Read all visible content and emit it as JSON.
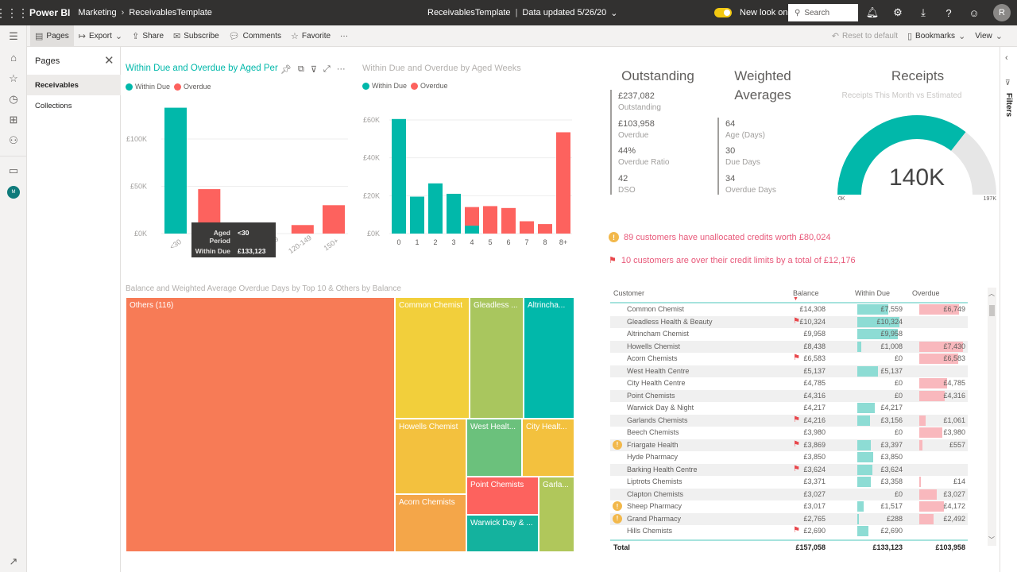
{
  "topbar": {
    "app_name": "Power BI",
    "breadcrumb": [
      "Marketing",
      "ReceivablesTemplate"
    ],
    "report_title": "ReceivablesTemplate",
    "data_updated": "Data updated 5/26/20",
    "new_look_label": "New look on",
    "new_look_on": true,
    "search_placeholder": "Search",
    "avatar_initial": "R"
  },
  "commandbar": {
    "pages": "Pages",
    "export": "Export",
    "share": "Share",
    "subscribe": "Subscribe",
    "comments": "Comments",
    "favorite": "Favorite",
    "more": "···",
    "reset": "Reset to default",
    "bookmarks": "Bookmarks",
    "view": "View"
  },
  "rail": {
    "avatar_initial": "M"
  },
  "pages_pane": {
    "title": "Pages",
    "items": [
      {
        "label": "Receivables",
        "active": true
      },
      {
        "label": "Collections",
        "active": false
      }
    ]
  },
  "filters_pane": {
    "label": "Filters"
  },
  "legend": {
    "within_due": "Within Due",
    "overdue": "Overdue"
  },
  "colors": {
    "within_due": "#01b8aa",
    "overdue": "#fd625e",
    "accent": "#01b8aa",
    "alert_text": "#e8597a"
  },
  "tooltip": {
    "k1": "Aged Period",
    "v1": "<30",
    "k2": "Within Due",
    "v2": "£133,123"
  },
  "chart_data": [
    {
      "type": "bar",
      "title": "Within Due and Overdue by Aged Per",
      "categories": [
        "<30",
        "30-59",
        "60-89",
        "90-119",
        "120-149",
        "150+"
      ],
      "series": [
        {
          "name": "Within Due",
          "values": [
            133123,
            0,
            0,
            0,
            0,
            0
          ]
        },
        {
          "name": "Overdue",
          "values": [
            0,
            47000,
            8000,
            0,
            9000,
            30000
          ]
        }
      ],
      "yticks": [
        "£0K",
        "£50K",
        "£100K"
      ],
      "ylim": [
        0,
        140000
      ],
      "grid": true,
      "legend": "top-left"
    },
    {
      "type": "bar",
      "stacked": true,
      "title": "Within Due and Overdue by Aged Weeks",
      "categories": [
        "0",
        "1",
        "2",
        "3",
        "4",
        "5",
        "6",
        "7",
        "8",
        "8+"
      ],
      "series": [
        {
          "name": "Within Due",
          "values": [
            60500,
            19500,
            26500,
            21000,
            4200,
            0,
            0,
            0,
            0,
            0
          ]
        },
        {
          "name": "Overdue",
          "values": [
            0,
            0,
            0,
            0,
            9800,
            14500,
            13500,
            6500,
            5000,
            53500
          ]
        }
      ],
      "yticks": [
        "£0K",
        "£20K",
        "£40K",
        "£60K"
      ],
      "ylim": [
        0,
        62000
      ],
      "grid": true,
      "legend": "top-left"
    },
    {
      "type": "treemap",
      "title": "Balance and Weighted Average Overdue Days by Top 10 & Others by Balance",
      "items": [
        {
          "label": "Others (116)",
          "value": 157058,
          "color": "#f77b56"
        },
        {
          "label": "Common Chemist",
          "value": 14308,
          "color": "#f2cf3b"
        },
        {
          "label": "Gleadless ...",
          "value": 10324,
          "color": "#a9c65e"
        },
        {
          "label": "Altrincha...",
          "value": 9958,
          "color": "#01b8aa"
        },
        {
          "label": "Howells Chemist",
          "value": 8438,
          "color": "#f3c13e"
        },
        {
          "label": "West Healt...",
          "value": 5137,
          "color": "#6bc17c"
        },
        {
          "label": "City Healt...",
          "value": 4785,
          "color": "#f3c13e"
        },
        {
          "label": "Acorn Chemists",
          "value": 6583,
          "color": "#f4a649"
        },
        {
          "label": "Point Chemists",
          "value": 4316,
          "color": "#fd625e"
        },
        {
          "label": "Warwick Day & ...",
          "value": 4217,
          "color": "#14b29e"
        },
        {
          "label": "Garla...",
          "value": 4216,
          "color": "#b0c75b"
        }
      ]
    },
    {
      "type": "gauge",
      "title": "Receipts",
      "subtitle": "Receipts This Month vs Estimated",
      "value": 140000,
      "value_label": "140K",
      "min": 0,
      "max": 197000,
      "min_label": "0K",
      "max_label": "197K"
    }
  ],
  "kpis": {
    "outstanding": {
      "title": "Outstanding",
      "items": [
        {
          "value": "£237,082",
          "label": "Outstanding"
        },
        {
          "value": "£103,958",
          "label": "Overdue"
        },
        {
          "value": "44%",
          "label": "Overdue Ratio"
        },
        {
          "value": "42",
          "label": "DSO"
        }
      ]
    },
    "weighted": {
      "title_line1": "Weighted",
      "title_line2": "Averages",
      "items": [
        {
          "value": "64",
          "label": "Age (Days)"
        },
        {
          "value": "30",
          "label": "Due Days"
        },
        {
          "value": "34",
          "label": "Overdue Days"
        }
      ]
    }
  },
  "alerts": [
    {
      "icon": "warning",
      "text": "89 customers have unallocated credits worth £80,024"
    },
    {
      "icon": "flag",
      "text": "10 customers are over their credit limits by a total of £12,176"
    }
  ],
  "table": {
    "columns": [
      "Customer",
      "Balance",
      "Within Due",
      "Overdue"
    ],
    "max_within": 10324,
    "max_overdue": 7430,
    "rows": [
      {
        "customer": "Common Chemist",
        "warn": false,
        "flag": false,
        "balance": "£14,308",
        "within": "£7,559",
        "within_n": 7559,
        "overdue": "£6,749",
        "overdue_n": 6749
      },
      {
        "customer": "Gleadless Health & Beauty",
        "warn": false,
        "flag": true,
        "balance": "£10,324",
        "within": "£10,324",
        "within_n": 10324,
        "overdue": "",
        "overdue_n": 0
      },
      {
        "customer": "Altrincham Chemist",
        "warn": false,
        "flag": false,
        "balance": "£9,958",
        "within": "£9,958",
        "within_n": 9958,
        "overdue": "",
        "overdue_n": 0
      },
      {
        "customer": "Howells Chemist",
        "warn": false,
        "flag": false,
        "balance": "£8,438",
        "within": "£1,008",
        "within_n": 1008,
        "overdue": "£7,430",
        "overdue_n": 7430
      },
      {
        "customer": "Acorn Chemists",
        "warn": false,
        "flag": true,
        "balance": "£6,583",
        "within": "£0",
        "within_n": 0,
        "overdue": "£6,583",
        "overdue_n": 6583
      },
      {
        "customer": "West Health Centre",
        "warn": false,
        "flag": false,
        "balance": "£5,137",
        "within": "£5,137",
        "within_n": 5137,
        "overdue": "",
        "overdue_n": 0
      },
      {
        "customer": "City Health Centre",
        "warn": false,
        "flag": false,
        "balance": "£4,785",
        "within": "£0",
        "within_n": 0,
        "overdue": "£4,785",
        "overdue_n": 4785
      },
      {
        "customer": "Point Chemists",
        "warn": false,
        "flag": false,
        "balance": "£4,316",
        "within": "£0",
        "within_n": 0,
        "overdue": "£4,316",
        "overdue_n": 4316
      },
      {
        "customer": "Warwick Day & Night",
        "warn": false,
        "flag": false,
        "balance": "£4,217",
        "within": "£4,217",
        "within_n": 4217,
        "overdue": "",
        "overdue_n": 0
      },
      {
        "customer": "Garlands Chemists",
        "warn": false,
        "flag": true,
        "balance": "£4,216",
        "within": "£3,156",
        "within_n": 3156,
        "overdue": "£1,061",
        "overdue_n": 1061
      },
      {
        "customer": "Beech Chemists",
        "warn": false,
        "flag": false,
        "balance": "£3,980",
        "within": "£0",
        "within_n": 0,
        "overdue": "£3,980",
        "overdue_n": 3980
      },
      {
        "customer": "Friargate Health",
        "warn": true,
        "flag": true,
        "balance": "£3,869",
        "within": "£3,397",
        "within_n": 3397,
        "overdue": "£557",
        "overdue_n": 557
      },
      {
        "customer": "Hyde Pharmacy",
        "warn": false,
        "flag": false,
        "balance": "£3,850",
        "within": "£3,850",
        "within_n": 3850,
        "overdue": "",
        "overdue_n": 0
      },
      {
        "customer": "Barking Health Centre",
        "warn": false,
        "flag": true,
        "balance": "£3,624",
        "within": "£3,624",
        "within_n": 3624,
        "overdue": "",
        "overdue_n": 0
      },
      {
        "customer": "Liptrots Chemists",
        "warn": false,
        "flag": false,
        "balance": "£3,371",
        "within": "£3,358",
        "within_n": 3358,
        "overdue": "£14",
        "overdue_n": 14
      },
      {
        "customer": "Clapton Chemists",
        "warn": false,
        "flag": false,
        "balance": "£3,027",
        "within": "£0",
        "within_n": 0,
        "overdue": "£3,027",
        "overdue_n": 3027
      },
      {
        "customer": "Sheep Pharmacy",
        "warn": true,
        "flag": false,
        "balance": "£3,017",
        "within": "£1,517",
        "within_n": 1517,
        "overdue": "£4,172",
        "overdue_n": 4172
      },
      {
        "customer": "Grand Pharmacy",
        "warn": true,
        "flag": false,
        "balance": "£2,765",
        "within": "£288",
        "within_n": 288,
        "overdue": "£2,492",
        "overdue_n": 2492
      },
      {
        "customer": "Hills Chemists",
        "warn": false,
        "flag": true,
        "balance": "£2,690",
        "within": "£2,690",
        "within_n": 2690,
        "overdue": "",
        "overdue_n": 0
      }
    ],
    "total": {
      "label": "Total",
      "balance": "£157,058",
      "within": "£133,123",
      "overdue": "£103,958"
    }
  }
}
